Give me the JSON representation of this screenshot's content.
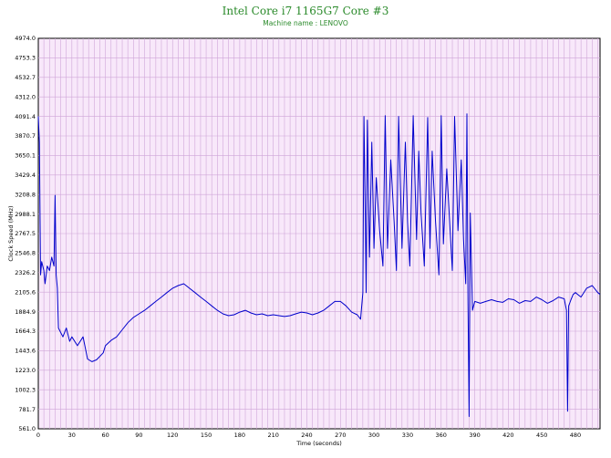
{
  "chart_data": {
    "type": "line",
    "title": "Intel Core i7 1165G7 Core #3",
    "subtitle": "Machine name : LENOVO",
    "xlabel": "Time (seconds)",
    "ylabel": "Clock Speed (MHz)",
    "xlim": [
      0,
      502
    ],
    "ylim": [
      561.0,
      4974.0
    ],
    "xticks": [
      "0",
      "30",
      "60",
      "90",
      "120",
      "150",
      "180",
      "210",
      "240",
      "270",
      "300",
      "330",
      "360",
      "390",
      "420",
      "450",
      "480"
    ],
    "yticks": [
      "561.0",
      "781.7",
      "1002.3",
      "1223.0",
      "1443.6",
      "1664.3",
      "1884.9",
      "2105.6",
      "2326.2",
      "2546.8",
      "2767.5",
      "2988.1",
      "3208.8",
      "3429.4",
      "3650.1",
      "3870.7",
      "4091.4",
      "4312.0",
      "4532.7",
      "4753.3",
      "4974.0"
    ],
    "grid": true,
    "colors": {
      "background": "#f8e8fa",
      "grid": "#cfa6d8",
      "line": "#0000cc",
      "title": "#2a8a2a"
    },
    "series": [
      {
        "name": "",
        "x": [
          0,
          1,
          2,
          3,
          4,
          5,
          6,
          8,
          10,
          12,
          14,
          15,
          16,
          17,
          18,
          20,
          22,
          25,
          28,
          30,
          35,
          40,
          44,
          48,
          52,
          55,
          58,
          60,
          65,
          70,
          75,
          80,
          85,
          90,
          95,
          100,
          105,
          110,
          115,
          120,
          125,
          130,
          135,
          140,
          145,
          150,
          155,
          160,
          165,
          170,
          175,
          180,
          185,
          190,
          195,
          200,
          205,
          210,
          215,
          220,
          225,
          230,
          235,
          240,
          245,
          250,
          255,
          260,
          265,
          270,
          275,
          280,
          285,
          288,
          290,
          291,
          292,
          293,
          294,
          296,
          298,
          300,
          302,
          305,
          308,
          310,
          312,
          315,
          318,
          320,
          322,
          325,
          328,
          330,
          332,
          335,
          338,
          340,
          342,
          345,
          348,
          350,
          352,
          355,
          358,
          360,
          362,
          365,
          368,
          370,
          372,
          375,
          378,
          380,
          382,
          383,
          384,
          385,
          386,
          388,
          390,
          395,
          400,
          405,
          410,
          415,
          420,
          425,
          430,
          435,
          440,
          445,
          450,
          455,
          460,
          465,
          470,
          472,
          473,
          474,
          476,
          478,
          480,
          485,
          490,
          495,
          500,
          502
        ],
        "values": [
          4091,
          3800,
          2300,
          2450,
          2400,
          2350,
          2200,
          2400,
          2350,
          2500,
          2400,
          3200,
          2300,
          2150,
          1700,
          1650,
          1600,
          1700,
          1550,
          1600,
          1500,
          1600,
          1350,
          1320,
          1340,
          1380,
          1420,
          1500,
          1560,
          1600,
          1680,
          1760,
          1820,
          1860,
          1900,
          1950,
          2000,
          2050,
          2100,
          2150,
          2180,
          2200,
          2150,
          2100,
          2050,
          2000,
          1950,
          1900,
          1860,
          1840,
          1850,
          1880,
          1900,
          1870,
          1850,
          1860,
          1840,
          1850,
          1840,
          1830,
          1840,
          1860,
          1880,
          1870,
          1850,
          1870,
          1900,
          1950,
          2000,
          2000,
          1950,
          1880,
          1850,
          1800,
          2100,
          4091,
          3200,
          2100,
          4050,
          2500,
          3800,
          2600,
          3400,
          2800,
          2400,
          4100,
          2600,
          3600,
          2900,
          2350,
          4091,
          2600,
          3800,
          2900,
          2400,
          4100,
          2700,
          3700,
          3000,
          2400,
          4080,
          2600,
          3700,
          2900,
          2300,
          4100,
          2650,
          3500,
          2800,
          2350,
          4091,
          2800,
          3600,
          2700,
          2200,
          4120,
          2000,
          700,
          3000,
          1900,
          2000,
          1980,
          2000,
          2020,
          2000,
          1990,
          2030,
          2020,
          1980,
          2010,
          2000,
          2050,
          2020,
          1980,
          2010,
          2050,
          2030,
          1900,
          760,
          1950,
          2020,
          2080,
          2100,
          2050,
          2150,
          2180,
          2100,
          2080
        ]
      }
    ]
  }
}
